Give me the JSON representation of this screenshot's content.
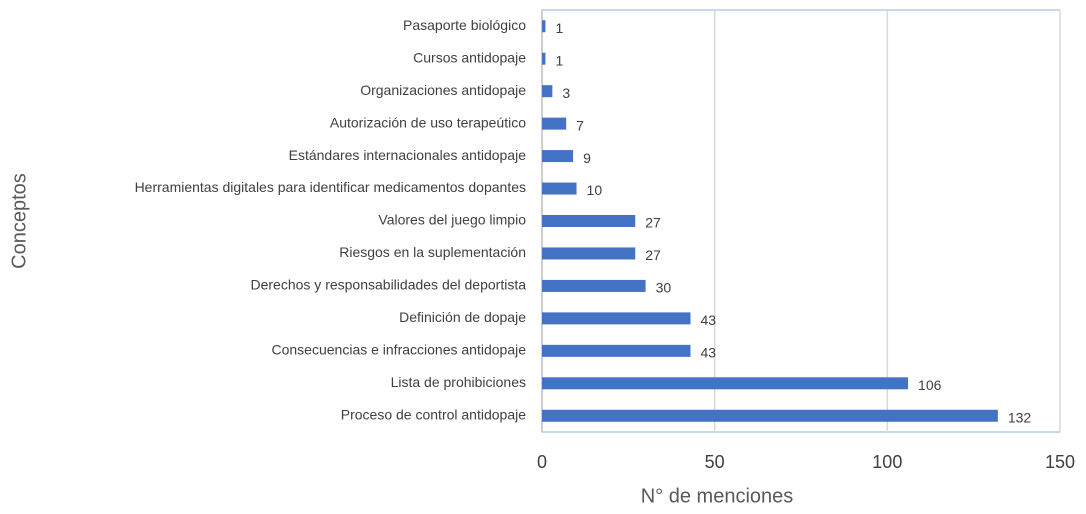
{
  "chart_data": {
    "type": "hbar",
    "categories": [
      "Pasaporte biológico",
      "Cursos antidopaje",
      "Organizaciones antidopaje",
      "Autorización de uso terapeútico",
      "Estándares internacionales antidopaje",
      "Herramientas digitales para identificar medicamentos dopantes",
      "Valores del juego limpio",
      "Riesgos en la suplementación",
      "Derechos y responsabilidades del deportista",
      "Definición de dopaje",
      "Consecuencias e infracciones antidopaje",
      "Lista de prohibiciones",
      "Proceso de control antidopaje"
    ],
    "values": [
      1,
      1,
      3,
      7,
      9,
      10,
      27,
      27,
      30,
      43,
      43,
      106,
      132
    ],
    "color": "#4472c4",
    "xlabel": "N° de menciones",
    "ylabel": "Conceptos",
    "xlim": [
      0,
      150
    ],
    "xticks": [
      0,
      50,
      100,
      150
    ],
    "grid": true
  }
}
